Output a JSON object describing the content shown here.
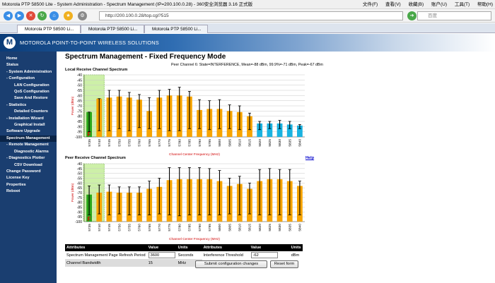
{
  "browser": {
    "title": "Motorola PTP 58500 Lite - System Administration - Spectrum Management (IP=200.100.0.28) - 360安全浏览器 3.16 正式版",
    "menus": [
      "文件(F)",
      "查看(V)",
      "收藏(B)",
      "账户(U)",
      "工具(T)",
      "帮助(H)"
    ],
    "address": "http://200.100.0.28/top.cgi?515",
    "search_placeholder": "百度",
    "tabs": [
      "Motorola PTP 58500 Li...",
      "Motorola PTP 58500 Li...",
      "Motorola PTP 58500 Li..."
    ]
  },
  "header": {
    "brand": "MOTOROLA POINT-TO-POINT WIRELESS SOLUTIONS",
    "logo": "M"
  },
  "sidebar": [
    {
      "label": "Home",
      "level": 0
    },
    {
      "label": "Status",
      "level": 0
    },
    {
      "label": "System Administration",
      "level": 0,
      "prefix": "-"
    },
    {
      "label": "Configuration",
      "level": 1,
      "prefix": "-"
    },
    {
      "label": "LAN Configuration",
      "level": 2
    },
    {
      "label": "QoS Configuration",
      "level": 2
    },
    {
      "label": "Save And Restore",
      "level": 2
    },
    {
      "label": "Statistics",
      "level": 1,
      "prefix": "-"
    },
    {
      "label": "Detailed Counters",
      "level": 2
    },
    {
      "label": "Installation Wizard",
      "level": 1,
      "prefix": "-"
    },
    {
      "label": "Graphical Install",
      "level": 2
    },
    {
      "label": "Software Upgrade",
      "level": 1
    },
    {
      "label": "Spectrum Management",
      "level": 1,
      "selected": true
    },
    {
      "label": "Remote Management",
      "level": 1,
      "prefix": "-"
    },
    {
      "label": "Diagnostic Alarms",
      "level": 2
    },
    {
      "label": "Diagnostics Plotter",
      "level": 1,
      "prefix": "-"
    },
    {
      "label": "CSV Download",
      "level": 2
    },
    {
      "label": "Change Password",
      "level": 1
    },
    {
      "label": "License Key",
      "level": 1
    },
    {
      "label": "Properties",
      "level": 1
    },
    {
      "label": "Reboot",
      "level": 1
    }
  ],
  "page": {
    "title": "Spectrum Management - Fixed Frequency Mode",
    "peer_info": "Peer Channel 6: State=INTERFERENCE, Mean=-88 dBm, 99.9%=-71 dBm, Peak=-67 dBm",
    "help": "Help"
  },
  "chart_data": [
    {
      "type": "bar",
      "title": "Local Receive Channel Spectrum",
      "xlabel": "Channel Center Frequency (MHz)",
      "ylabel": "Power (dBm)",
      "ylim": [
        -100,
        -40
      ],
      "yticks": [
        -40,
        -45,
        -50,
        -55,
        -60,
        -65,
        -70,
        -75,
        -80,
        -85,
        -90,
        -95,
        -100
      ],
      "categories": [
        "5735",
        "5740",
        "5745",
        "5750",
        "5755",
        "5760",
        "5765",
        "5770",
        "5775",
        "5780",
        "5785",
        "5790",
        "5795",
        "5800",
        "5805",
        "5810",
        "5815",
        "5820",
        "5825",
        "5830",
        "5835",
        "5840"
      ],
      "mean": [
        -76,
        -63,
        -62,
        -61,
        -62,
        -64,
        -75,
        -62,
        -60,
        -60,
        -61,
        -74,
        -73,
        -73,
        -75,
        -76,
        -80,
        -87,
        -87,
        -87,
        -88,
        -89
      ],
      "peak": [
        -76,
        -63,
        -55,
        -55,
        -57,
        -59,
        -62,
        -55,
        -54,
        -52,
        -56,
        -64,
        -65,
        -64,
        -69,
        -70,
        -77,
        -85,
        -85,
        -84,
        -85,
        -88
      ],
      "low": [
        -95,
        -94,
        -94,
        -92,
        -94,
        -91,
        -92,
        -92,
        -94,
        -94,
        -92,
        -92,
        -93,
        -92,
        -92,
        -93,
        -93,
        -93,
        -92,
        -92,
        -92,
        -92
      ],
      "channel_colors": [
        "green",
        "orange",
        "orange",
        "orange",
        "orange",
        "orange",
        "orange",
        "orange",
        "orange",
        "orange",
        "orange",
        "orange",
        "orange",
        "orange",
        "orange",
        "orange",
        "orange",
        "cyan",
        "cyan",
        "cyan",
        "cyan",
        "cyan"
      ],
      "highlight_band": [
        "5735",
        "5740"
      ],
      "marker": {
        "channel": "5735",
        "text": "F"
      }
    },
    {
      "type": "bar",
      "title": "Peer Receive Channel Spectrum",
      "xlabel": "Channel Center Frequency (MHz)",
      "ylabel": "Power (dBm)",
      "ylim": [
        -100,
        -40
      ],
      "yticks": [
        -40,
        -45,
        -50,
        -55,
        -60,
        -65,
        -70,
        -75,
        -80,
        -85,
        -90,
        -95,
        -100
      ],
      "categories": [
        "5735",
        "5740",
        "5745",
        "5750",
        "5755",
        "5760",
        "5765",
        "5770",
        "5775",
        "5780",
        "5785",
        "5790",
        "5795",
        "5800",
        "5805",
        "5810",
        "5815",
        "5820",
        "5825",
        "5830",
        "5835",
        "5840"
      ],
      "mean": [
        -72,
        -70,
        -69,
        -70,
        -70,
        -70,
        -66,
        -64,
        -57,
        -56,
        -56,
        -56,
        -56,
        -58,
        -63,
        -61,
        -66,
        -58,
        -56,
        -56,
        -58,
        -63
      ],
      "peak": [
        -63,
        -62,
        -62,
        -64,
        -64,
        -64,
        -58,
        -55,
        -44,
        -44,
        -44,
        -44,
        -45,
        -47,
        -55,
        -53,
        -60,
        -46,
        -45,
        -46,
        -46,
        -58
      ],
      "low": [
        -93,
        -92,
        -93,
        -92,
        -93,
        -93,
        -93,
        -92,
        -93,
        -94,
        -93,
        -93,
        -93,
        -93,
        -92,
        -93,
        -92,
        -93,
        -93,
        -93,
        -93,
        -93
      ],
      "channel_colors": [
        "green",
        "orange",
        "orange",
        "orange",
        "orange",
        "orange",
        "orange",
        "orange",
        "orange",
        "orange",
        "orange",
        "orange",
        "orange",
        "orange",
        "orange",
        "orange",
        "orange",
        "orange",
        "orange",
        "orange",
        "orange",
        "orange"
      ],
      "highlight_band": [
        "5735",
        "5740"
      ],
      "marker": {
        "channel": "5735",
        "text": "F"
      }
    }
  ],
  "params": {
    "headers": [
      "Attributes",
      "Value",
      "Units",
      "Attributes",
      "Value",
      "Units"
    ],
    "rows": [
      [
        "Spectrum Management Page Refresh Period",
        "3600",
        "Seconds",
        "Interference Threshold",
        "-62",
        "dBm"
      ],
      [
        "Channel Bandwidth",
        "15",
        "MHz",
        "",
        "",
        ""
      ]
    ],
    "submit_label": "Submit configuration changes",
    "reset_label": "Reset form"
  },
  "colors": {
    "sidebar": "#1a3e70",
    "orange": "#f7a400",
    "green": "#2aa81a",
    "cyan": "#1ab2e0",
    "band": "#cdf0a8",
    "marker": "#e00000"
  }
}
